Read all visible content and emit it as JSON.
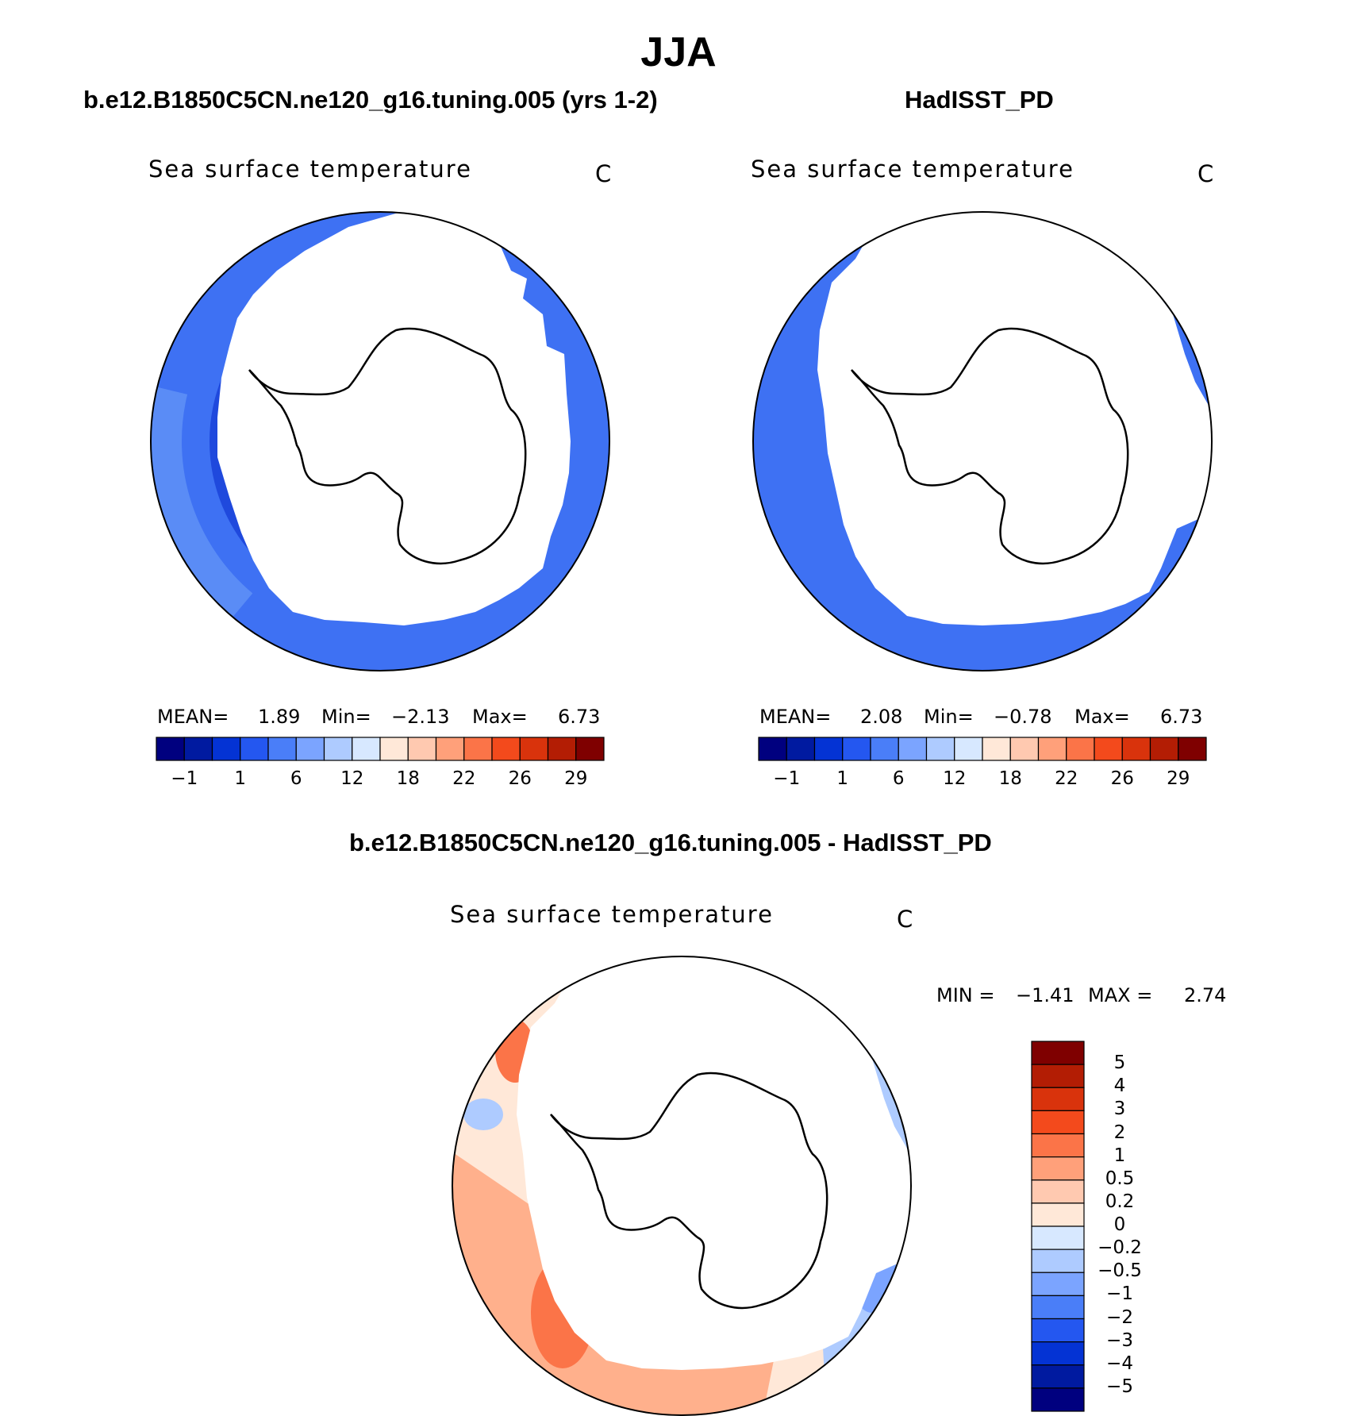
{
  "header": {
    "season": "JJA",
    "left_title": "b.e12.B1850C5CN.ne120_g16.tuning.005 (yrs 1-2)",
    "right_title": "HadISST_PD",
    "diff_title": "b.e12.B1850C5CN.ne120_g16.tuning.005 - HadISST_PD"
  },
  "panels": {
    "model": {
      "variable": "Sea surface temperature",
      "units": "C",
      "mean_label": "MEAN=",
      "mean": "1.89",
      "min_label": "Min=",
      "min": "−2.13",
      "max_label": "Max=",
      "max": "6.73"
    },
    "obs": {
      "variable": "Sea surface temperature",
      "units": "C",
      "mean_label": "MEAN=",
      "mean": "2.08",
      "min_label": "Min=",
      "min": "−0.78",
      "max_label": "Max=",
      "max": "6.73"
    },
    "diff": {
      "variable": "Sea surface temperature",
      "units": "C",
      "min_label": "MIN =",
      "min": "−1.41",
      "max_label": "MAX =",
      "max": "2.74"
    }
  },
  "chart_data": [
    {
      "type": "heatmap",
      "title": "Sea surface temperature",
      "units": "C",
      "projection": "south polar stereographic",
      "stats": {
        "mean": 1.89,
        "min": -2.13,
        "max": 6.73
      },
      "colorbar": {
        "orientation": "horizontal",
        "tick_labels": [
          "−1",
          "1",
          "6",
          "12",
          "18",
          "22",
          "26",
          "29"
        ],
        "colors": [
          "#00007f",
          "#001aa0",
          "#0433d4",
          "#2457f0",
          "#4a7ef8",
          "#7ba4ff",
          "#aecbff",
          "#d7e8ff",
          "#ffe8d8",
          "#ffc9b0",
          "#ffa07a",
          "#fb7448",
          "#f34a1c",
          "#d9330c",
          "#b31d04",
          "#7f0000"
        ]
      },
      "field_summary": "Sea ice region masked white around Antarctica; open ocean values mostly between −1 and 6 C, warmest toward the outer edge in the Pacific sector"
    },
    {
      "type": "heatmap",
      "title": "Sea surface temperature",
      "units": "C",
      "projection": "south polar stereographic",
      "stats": {
        "mean": 2.08,
        "min": -0.78,
        "max": 6.73
      },
      "colorbar": {
        "orientation": "horizontal",
        "tick_labels": [
          "−1",
          "1",
          "6",
          "12",
          "18",
          "22",
          "26",
          "29"
        ],
        "colors": [
          "#00007f",
          "#001aa0",
          "#0433d4",
          "#2457f0",
          "#4a7ef8",
          "#7ba4ff",
          "#aecbff",
          "#d7e8ff",
          "#ffe8d8",
          "#ffc9b0",
          "#ffa07a",
          "#fb7448",
          "#f34a1c",
          "#d9330c",
          "#b31d04",
          "#7f0000"
        ]
      },
      "field_summary": "Larger sea ice mask than the model; thin band of cold water along the outer rim"
    },
    {
      "type": "heatmap",
      "title": "Sea surface temperature",
      "units": "C",
      "projection": "south polar stereographic",
      "stats": {
        "min": -1.41,
        "max": 2.74
      },
      "colorbar": {
        "orientation": "vertical",
        "tick_labels": [
          "5",
          "4",
          "3",
          "2",
          "1",
          "0.5",
          "0.2",
          "0",
          "−0.2",
          "−0.5",
          "−1",
          "−2",
          "−3",
          "−4",
          "−5"
        ],
        "colors": [
          "#7f0000",
          "#b31d04",
          "#d9330c",
          "#f34a1c",
          "#fb7448",
          "#ffa07a",
          "#ffc9b0",
          "#ffe8d8",
          "#d7e8ff",
          "#aecbff",
          "#7ba4ff",
          "#4a7ef8",
          "#2457f0",
          "#0433d4",
          "#001aa0",
          "#00007f"
        ]
      },
      "field_summary": "Model minus observations: warm bias (0.2 to 3) over most of the Pacific sector ocean band, weak cold bias (−0.2 to −2) in the Indian/Atlantic sector"
    }
  ]
}
